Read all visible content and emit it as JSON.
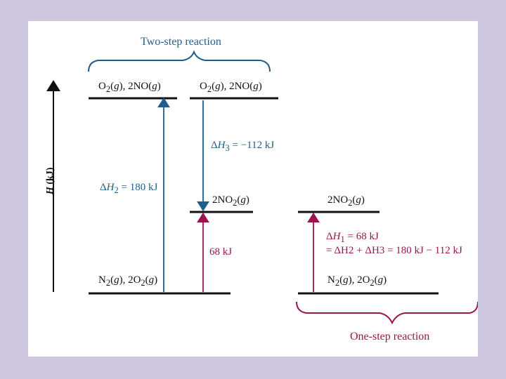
{
  "axis_label": "H (kJ)",
  "two_step": {
    "caption": "Two-step reaction",
    "top_left_level": "O2(g), 2NO(g)",
    "top_right_level": "O2(g), 2NO(g)",
    "mid_level": "2NO2(g)",
    "bottom_level": "N2(g), 2O2(g)",
    "dH2": "ΔH2 = 180 kJ",
    "dH3": "ΔH3 = −112 kJ",
    "rise": "68 kJ"
  },
  "one_step": {
    "caption": "One-step reaction",
    "top_level": "2NO2(g)",
    "bottom_level": "N2(g), 2O2(g)",
    "dH1": "ΔH1 = 68 kJ",
    "sum": "= ΔH2 + ΔH3 = 180 kJ − 112 kJ"
  },
  "colors": {
    "background": "#cfc7df",
    "blue": "#1f5e8a",
    "red": "#9a1450"
  }
}
